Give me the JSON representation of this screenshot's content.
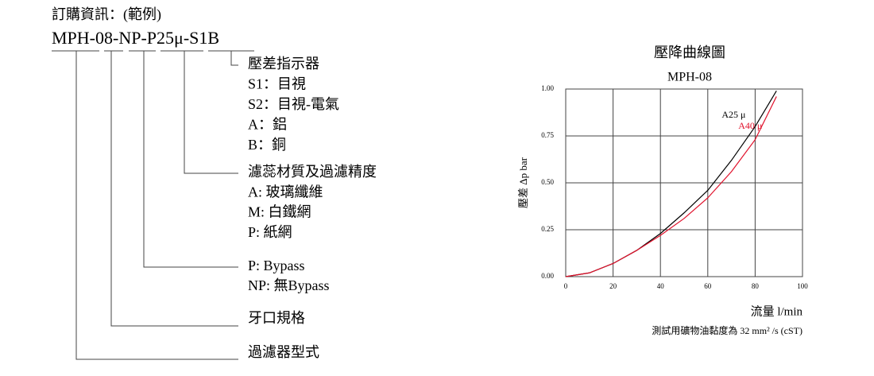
{
  "ordering": {
    "title": "訂購資訊：(範例)",
    "code": "MPH-08-NP-P25μ-S1B",
    "groups": [
      {
        "lines": [
          "壓差指示器",
          "S1：目視",
          "S2：目視-電氣",
          "A：鋁",
          "B：銅"
        ]
      },
      {
        "lines": [
          "濾蕊材質及過濾精度",
          "A: 玻璃纖維",
          "M: 白鐵網",
          "P:  紙網"
        ]
      },
      {
        "lines": [
          "P: Bypass",
          "NP: 無Bypass"
        ]
      },
      {
        "lines": [
          "牙口規格"
        ]
      },
      {
        "lines": [
          "過濾器型式"
        ]
      }
    ]
  },
  "chart_data": {
    "type": "line",
    "title": "壓降曲線圖",
    "subtitle": "MPH-08",
    "x_label": "流量  l/min",
    "y_label": "壓差  Δp bar",
    "note": "測試用礦物油黏度為 32 mm² /s (cST)",
    "x": [
      0,
      10,
      20,
      30,
      40,
      50,
      60,
      70,
      80,
      89
    ],
    "series": [
      {
        "name": "A25 μ",
        "color": "#000000",
        "values": [
          0,
          0.02,
          0.07,
          0.14,
          0.23,
          0.34,
          0.46,
          0.62,
          0.8,
          0.99
        ]
      },
      {
        "name": "A40 μ",
        "color": "#e0102a",
        "values": [
          0,
          0.02,
          0.07,
          0.14,
          0.22,
          0.31,
          0.42,
          0.56,
          0.73,
          0.96
        ]
      }
    ],
    "xlim": [
      0,
      100
    ],
    "xticks": [
      0,
      20,
      40,
      60,
      80,
      100
    ],
    "ylim": [
      0,
      1
    ],
    "yticks": [
      {
        "value": 0,
        "label": "0.00"
      },
      {
        "value": 0.25,
        "label": "0.25"
      },
      {
        "value": 0.5,
        "label": "0.50"
      },
      {
        "value": 0.75,
        "label": "0.75"
      },
      {
        "value": 1,
        "label": "1.00"
      }
    ],
    "grid": true
  }
}
